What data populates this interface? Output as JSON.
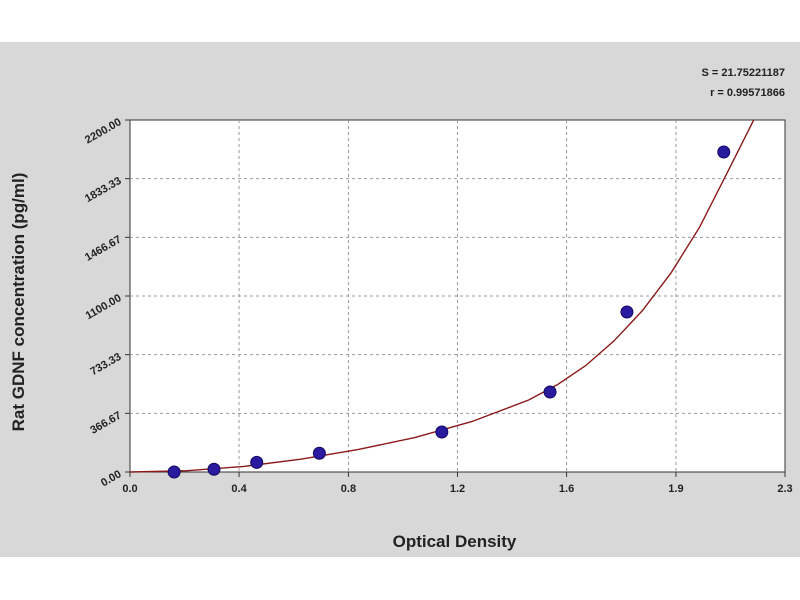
{
  "chart_data": {
    "type": "scatter",
    "title": "",
    "xlabel": "Optical Density",
    "ylabel": "Rat GDNF concentration (pg/ml)",
    "xlim": [
      0.0,
      2.3
    ],
    "ylim": [
      0.0,
      2200.0
    ],
    "x_ticks": [
      "0.0",
      "0.4",
      "0.8",
      "1.2",
      "1.6",
      "1.9",
      "2.3"
    ],
    "x_tick_values": [
      0.0,
      0.383,
      0.767,
      1.15,
      1.533,
      1.917,
      2.3
    ],
    "y_ticks": [
      "0.00",
      "366.67",
      "733.33",
      "1100.00",
      "1466.67",
      "1833.33",
      "2200.00"
    ],
    "y_tick_values": [
      0.0,
      366.67,
      733.33,
      1100.0,
      1466.67,
      1833.33,
      2200.0
    ],
    "grid": true,
    "stats": {
      "s": "S = 21.75221187",
      "r": "r = 0.99571866"
    },
    "series": [
      {
        "type": "scatter",
        "color": "#2a1aa0",
        "x": [
          0.155,
          0.295,
          0.445,
          0.665,
          1.095,
          1.475,
          1.745,
          2.085
        ],
        "y": [
          0.0,
          17.0,
          60.0,
          117.0,
          250.0,
          500.0,
          1000.0,
          2000.0
        ]
      },
      {
        "type": "line",
        "color": "#8b1a1a",
        "x": [
          0.0,
          0.2,
          0.4,
          0.6,
          0.8,
          1.0,
          1.2,
          1.4,
          1.5,
          1.6,
          1.7,
          1.8,
          1.9,
          2.0,
          2.1,
          2.19
        ],
        "y": [
          0.0,
          8.0,
          35.0,
          80.0,
          140.0,
          215.0,
          315.0,
          450.0,
          545.0,
          665.0,
          820.0,
          1010.0,
          1245.0,
          1530.0,
          1880.0,
          2200.0
        ]
      }
    ]
  }
}
